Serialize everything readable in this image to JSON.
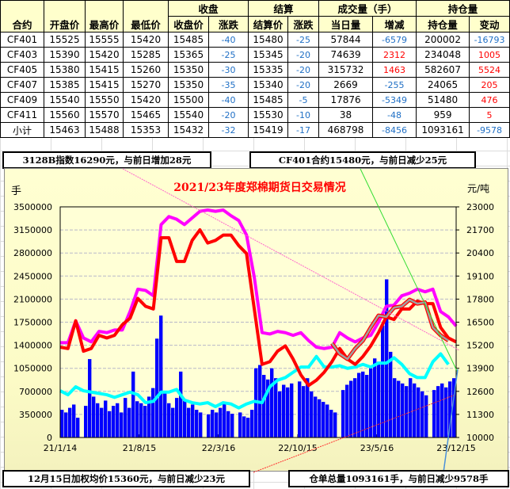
{
  "table": {
    "group_headers": {
      "close": "收盘",
      "settle": "结算",
      "volume": "成交量（手）",
      "oi": "持仓量"
    },
    "columns": [
      "合约",
      "开盘价",
      "最高价",
      "最低价",
      "收盘价",
      "涨跌",
      "结算价",
      "涨跌",
      "当日量",
      "增减",
      "持仓量",
      "变动"
    ],
    "rows": [
      [
        "CF401",
        "15525",
        "15555",
        "15420",
        "15485",
        "-40",
        "15480",
        "-25",
        "57844",
        "-6579",
        "200002",
        "-16793"
      ],
      [
        "CF403",
        "15390",
        "15420",
        "15285",
        "15365",
        "-25",
        "15345",
        "-20",
        "74639",
        "2312",
        "234048",
        "1005"
      ],
      [
        "CF405",
        "15380",
        "15415",
        "15260",
        "15350",
        "-30",
        "15335",
        "-20",
        "315732",
        "1463",
        "582607",
        "5524"
      ],
      [
        "CF407",
        "15385",
        "15415",
        "15270",
        "15350",
        "-35",
        "15340",
        "-20",
        "2669",
        "-255",
        "24065",
        "205"
      ],
      [
        "CF409",
        "15540",
        "15550",
        "15420",
        "15500",
        "-40",
        "15485",
        "-5",
        "17876",
        "-5349",
        "51480",
        "476"
      ],
      [
        "CF411",
        "15560",
        "15570",
        "15465",
        "15540",
        "-20",
        "15530",
        "-10",
        "38",
        "-48",
        "959",
        "5"
      ],
      [
        "小计",
        "15463",
        "15488",
        "15353",
        "15432",
        "-32",
        "15419",
        "-17",
        "468798",
        "-8456",
        "1093161",
        "-9578"
      ]
    ]
  },
  "callouts": {
    "index": "3128B指数16290元，与前日增加28元",
    "contract": "CF401合约15480元，与前日减少25元",
    "weighted": "12月15日加权均价15360元，与前日减少23元",
    "warehouse": "仓单总量1093161手，与前日减少9578手"
  },
  "colors": {
    "negative": "#1F6FC5",
    "positive": "#FF0000",
    "header_bg": "#FFFFCC",
    "chart_bg": "#FFFFD2"
  },
  "chart_data": {
    "type": "bar+line",
    "title": "2021/23年度郑棉期货日交易情况",
    "ylabel_left": "手",
    "ylabel_right": "元/吨",
    "ylim_left": [
      0,
      3500000
    ],
    "ylim_right": [
      10000,
      23000
    ],
    "yticks_left": [
      "0",
      "350000",
      "700000",
      "1050000",
      "1400000",
      "1750000",
      "2100000",
      "2450000",
      "2800000",
      "3150000",
      "3500000"
    ],
    "yticks_right": [
      "10000",
      "11300",
      "12600",
      "13900",
      "15200",
      "16500",
      "17800",
      "19100",
      "20400",
      "21700",
      "23000"
    ],
    "xticks": [
      "21/1/14",
      "21/8/15",
      "22/3/16",
      "22/10/15",
      "23/5/16",
      "23/12/15"
    ],
    "grid": true,
    "series": [
      {
        "axis": "left",
        "kind": "bar",
        "color": "#0000FF",
        "values": [
          420000,
          380000,
          450000,
          500000,
          300000,
          0,
          480000,
          1190000,
          620000,
          520000,
          450000,
          560000,
          400000,
          480000,
          520000,
          380000,
          600000,
          450000,
          1000000,
          550000,
          520000,
          480000,
          620000,
          750000,
          1500000,
          1850000,
          700000,
          520000,
          450000,
          600000,
          1000000,
          560000,
          450000,
          500000,
          420000,
          380000,
          0,
          350000,
          420000,
          380000,
          450000,
          520000,
          400000,
          360000,
          0,
          380000,
          320000,
          300000,
          420000,
          1050000,
          1100000,
          950000,
          880000,
          1050000,
          900000,
          700000,
          800000,
          760000,
          820000,
          0,
          850000,
          780000,
          900000,
          700000,
          620000,
          580000,
          540000,
          500000,
          420000,
          380000,
          0,
          720000,
          800000,
          860000,
          900000,
          980000,
          1000000,
          950000,
          1050000,
          1200000,
          1150000,
          1700000,
          2400000,
          1300000,
          900000,
          860000,
          820000,
          780000,
          900000,
          820000,
          760000,
          700000,
          640000,
          0,
          720000,
          780000,
          820000,
          760000,
          850000,
          900000
        ]
      },
      {
        "axis": "left",
        "kind": "line",
        "color": "#00FFFF",
        "values": [
          708800,
          648700,
          768900,
          708800,
          688800,
          668800,
          648700,
          608700,
          648700,
          688800,
          648700,
          528600,
          548600,
          688800,
          688800,
          728800,
          568700,
          528600,
          508600,
          528600,
          468500,
          528600,
          508600,
          448500,
          508600,
          548600,
          528600,
          768900,
          869000,
          909000,
          989100,
          1069200,
          1069200,
          1229400,
          1069200,
          1069200,
          1089300,
          1049200,
          1069200,
          1109300,
          1069200,
          1129300,
          1129300,
          1209400,
          1109300,
          969100,
          909000,
          909000,
          1149300,
          1269500,
          1109300
        ]
      },
      {
        "axis": "right",
        "kind": "line",
        "color": "#FF00FF",
        "values": [
          15342,
          15342,
          16576,
          15610,
          15390,
          15980,
          15910,
          16060,
          16060,
          17100,
          18360,
          18290,
          17990,
          22000,
          22450,
          22300,
          22000,
          22375,
          22750,
          22820,
          22750,
          22820,
          22500,
          22230,
          21410,
          19030,
          15910,
          15833,
          15981,
          15907,
          15758,
          15907,
          15461,
          15089,
          15015,
          15089,
          15907,
          15610,
          15387,
          15610,
          15758,
          16502,
          17394,
          17468,
          17989,
          18137,
          18360,
          18212,
          18360,
          17097,
          16799,
          16279
        ]
      },
      {
        "axis": "right",
        "kind": "line",
        "color": "#FF0000",
        "values": [
          15090,
          15015,
          16576,
          14866,
          15015,
          15758,
          15610,
          15758,
          16353,
          16725,
          17840,
          17394,
          17245,
          21260,
          21260,
          19922,
          19922,
          21110,
          21706,
          20963,
          21110,
          21410,
          21410,
          20814,
          20368,
          17245,
          14122,
          14271,
          14866,
          15163,
          14420,
          13528,
          12933,
          13230,
          13676,
          14271,
          15015,
          14420,
          14122,
          14569,
          15163,
          15907,
          16799,
          16651,
          17245,
          17245,
          17691,
          17543,
          17543,
          16204,
          15610,
          15387
        ]
      },
      {
        "axis": "right",
        "kind": "line",
        "color": "#A0A0A0",
        "start_index": 35,
        "values": [
          15312,
          14717,
          14420,
          15015,
          15461,
          16204,
          16874,
          16799,
          17320,
          17394,
          17766,
          17543,
          17617,
          16204,
          15758,
          15461
        ]
      }
    ]
  }
}
